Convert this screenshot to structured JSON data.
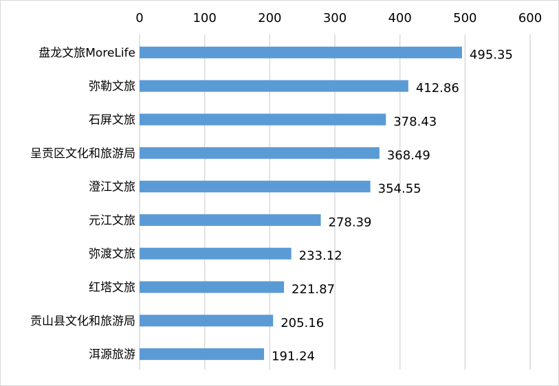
{
  "chart_data": {
    "type": "bar",
    "orientation": "horizontal",
    "categories": [
      "盘龙文旅MoreLife",
      "弥勒文旅",
      "石屏文旅",
      "呈贡区文化和旅游局",
      "澄江文旅",
      "元江文旅",
      "弥渡文旅",
      "红塔文旅",
      "贡山县文化和旅游局",
      "洱源旅游"
    ],
    "values": [
      495.35,
      412.86,
      378.43,
      368.49,
      354.55,
      278.39,
      233.12,
      221.87,
      205.16,
      191.24
    ],
    "value_labels": [
      "495.35",
      "412.86",
      "378.43",
      "368.49",
      "354.55",
      "278.39",
      "233.12",
      "221.87",
      "205.16",
      "191.24"
    ],
    "xlim": [
      0,
      600
    ],
    "x_ticks": [
      0,
      100,
      200,
      300,
      400,
      500,
      600
    ],
    "x_tick_labels": [
      "0",
      "100",
      "200",
      "300",
      "400",
      "500",
      "600"
    ],
    "x_axis_position": "top",
    "grid": true,
    "legend": "none",
    "title": "",
    "xlabel": "",
    "ylabel": "",
    "bar_color": "#5b9bd5",
    "grid_color": "#d9d9d9",
    "text_color": "#000000"
  }
}
